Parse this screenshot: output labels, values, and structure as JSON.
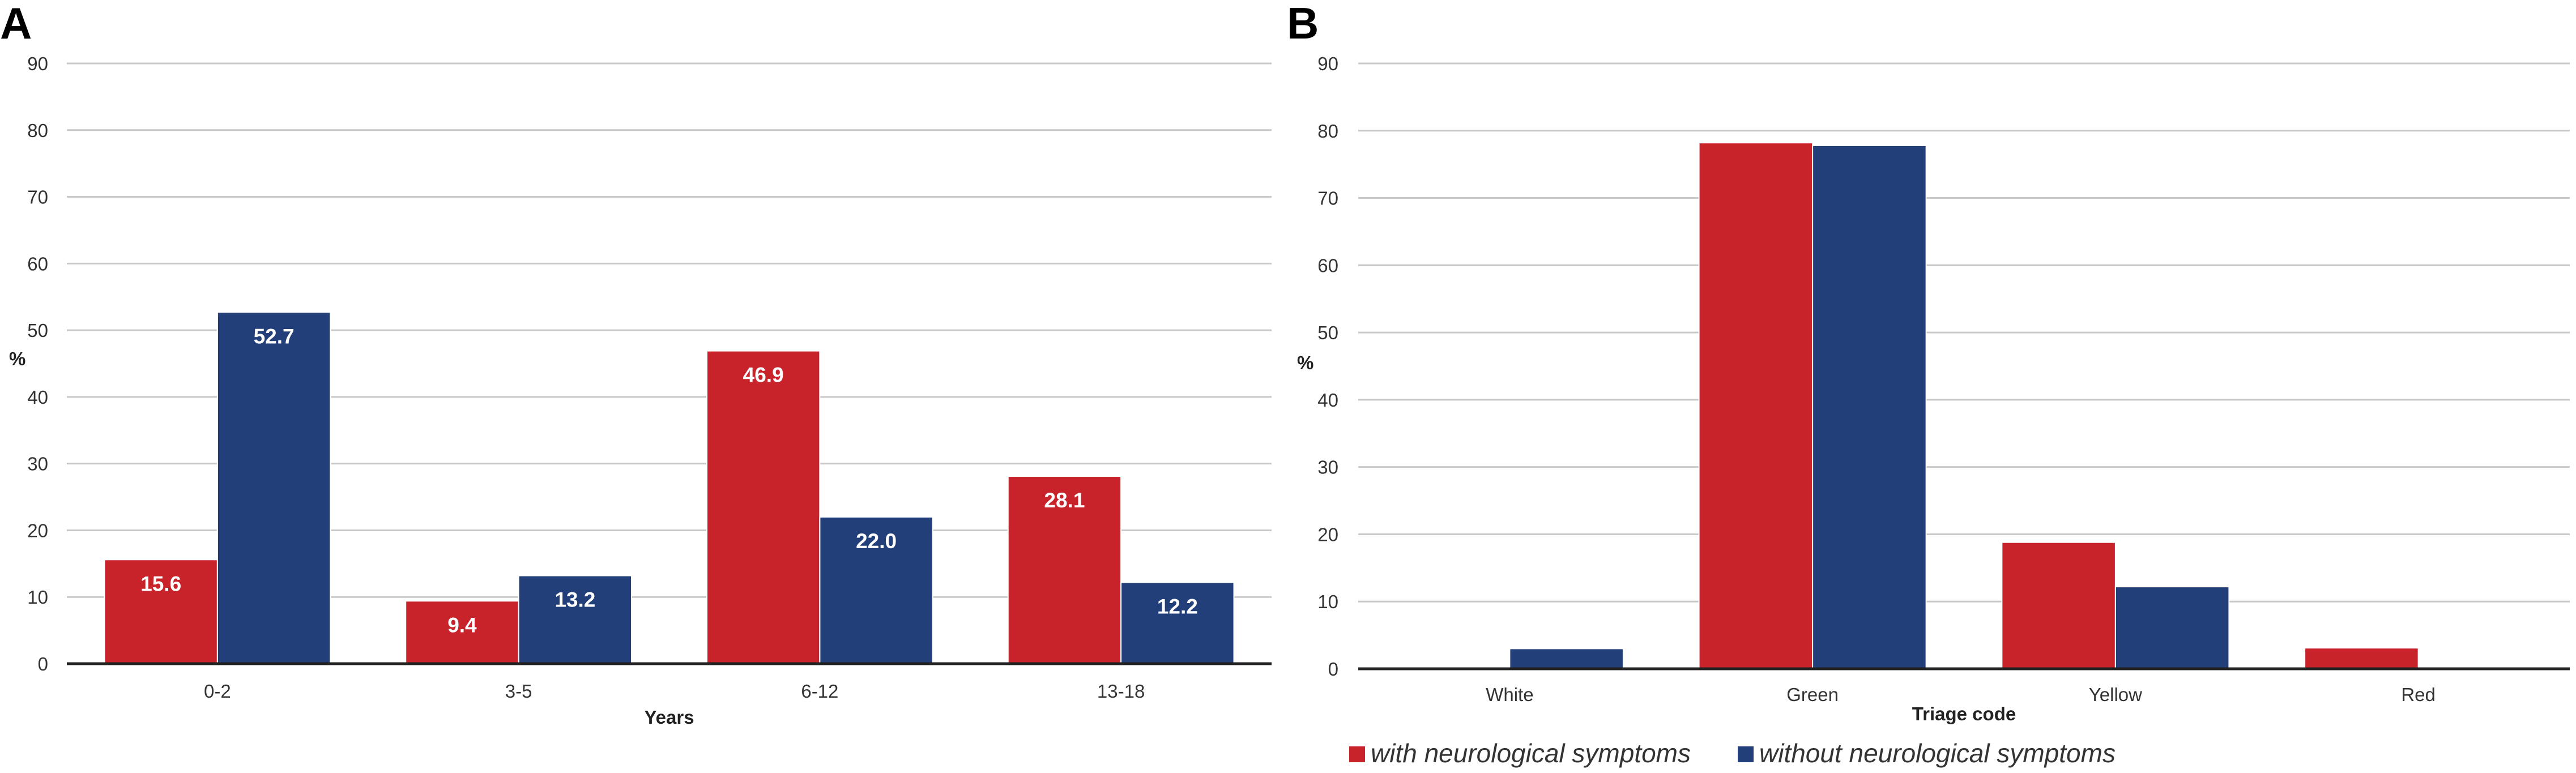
{
  "colors": {
    "with": "#c8232b",
    "without": "#233f7a"
  },
  "legend": {
    "with_label": "with neurological symptoms",
    "without_label": "without neurological symptoms"
  },
  "chart_data": [
    {
      "panel": "A",
      "type": "bar",
      "title": "",
      "xlabel": "Years",
      "ylabel": "%",
      "ylim": [
        0,
        90
      ],
      "yticks": [
        "0",
        "10",
        "20",
        "30",
        "40",
        "50",
        "60",
        "70",
        "80",
        "90"
      ],
      "categories": [
        "0-2",
        "3-5",
        "6-12",
        "13-18"
      ],
      "series": [
        {
          "name": "with neurological symptoms",
          "values": [
            15.6,
            9.4,
            46.9,
            28.1
          ],
          "labels": [
            "15.6",
            "9.4",
            "46.9",
            "28.1"
          ]
        },
        {
          "name": "without neurological symptoms",
          "values": [
            52.7,
            13.2,
            22.0,
            12.2
          ],
          "labels": [
            "52.7",
            "13.2",
            "22.0",
            "12.2"
          ]
        }
      ],
      "grid": true
    },
    {
      "panel": "B",
      "type": "bar",
      "title": "",
      "xlabel": "Triage code",
      "ylabel": "%",
      "ylim": [
        0,
        90
      ],
      "yticks": [
        "0",
        "10",
        "20",
        "30",
        "40",
        "50",
        "60",
        "70",
        "80",
        "90"
      ],
      "categories": [
        "White",
        "Green",
        "Yellow",
        "Red"
      ],
      "series": [
        {
          "name": "with neurological symptoms",
          "values": [
            0,
            78.2,
            18.8,
            3.1
          ]
        },
        {
          "name": "without neurological symptoms",
          "values": [
            3.0,
            77.8,
            12.2,
            0
          ]
        }
      ],
      "grid": true
    }
  ]
}
